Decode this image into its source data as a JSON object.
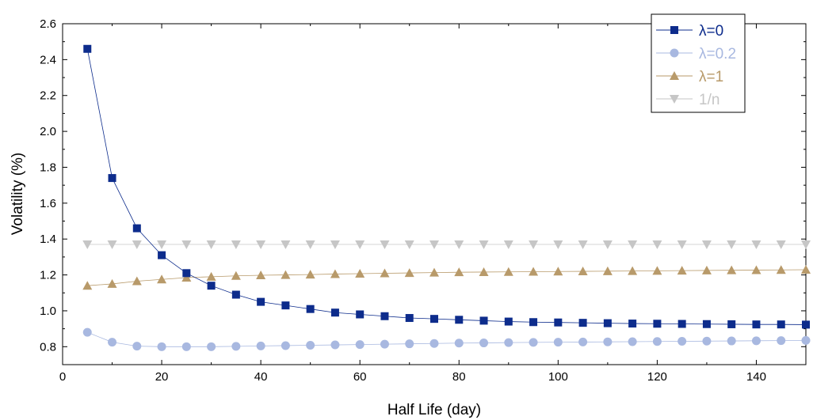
{
  "chart_data": {
    "type": "line",
    "title": "",
    "xlabel": "Half Life (day)",
    "ylabel": "Volatility (%)",
    "xlim": [
      0,
      150
    ],
    "ylim": [
      0.7,
      2.6
    ],
    "xticks": [
      0,
      20,
      40,
      60,
      80,
      100,
      120,
      140
    ],
    "yticks": [
      0.8,
      1.0,
      1.2,
      1.4,
      1.6,
      1.8,
      2.0,
      2.2,
      2.4,
      2.6
    ],
    "xtick_labels": [
      "0",
      "20",
      "40",
      "60",
      "80",
      "100",
      "120",
      "140"
    ],
    "ytick_labels": [
      "0.8",
      "1.0",
      "1.2",
      "1.4",
      "1.6",
      "1.8",
      "2.0",
      "2.2",
      "2.4",
      "2.6"
    ],
    "grid": false,
    "legend_position": "top-right",
    "x": [
      5,
      10,
      15,
      20,
      25,
      30,
      35,
      40,
      45,
      50,
      55,
      60,
      65,
      70,
      75,
      80,
      85,
      90,
      95,
      100,
      105,
      110,
      115,
      120,
      125,
      130,
      135,
      140,
      145,
      150
    ],
    "series": [
      {
        "name": "λ=0",
        "color": "#0d2c8c",
        "marker": "square",
        "values": [
          2.46,
          1.74,
          1.46,
          1.31,
          1.21,
          1.14,
          1.09,
          1.05,
          1.03,
          1.01,
          0.99,
          0.98,
          0.97,
          0.96,
          0.955,
          0.95,
          0.945,
          0.94,
          0.937,
          0.935,
          0.933,
          0.931,
          0.929,
          0.928,
          0.927,
          0.926,
          0.925,
          0.924,
          0.924,
          0.923
        ]
      },
      {
        "name": "λ=0.2",
        "color": "#a8b8e0",
        "marker": "circle",
        "values": [
          0.88,
          0.825,
          0.803,
          0.8,
          0.8,
          0.8,
          0.802,
          0.804,
          0.806,
          0.808,
          0.81,
          0.812,
          0.814,
          0.816,
          0.818,
          0.82,
          0.821,
          0.823,
          0.824,
          0.825,
          0.826,
          0.827,
          0.828,
          0.829,
          0.83,
          0.831,
          0.832,
          0.833,
          0.834,
          0.835
        ]
      },
      {
        "name": "λ=1",
        "color": "#b89a6a",
        "marker": "triangle-up",
        "values": [
          1.14,
          1.15,
          1.165,
          1.175,
          1.185,
          1.19,
          1.195,
          1.198,
          1.2,
          1.202,
          1.205,
          1.207,
          1.209,
          1.211,
          1.213,
          1.215,
          1.216,
          1.217,
          1.218,
          1.219,
          1.22,
          1.221,
          1.222,
          1.223,
          1.224,
          1.225,
          1.226,
          1.227,
          1.228,
          1.229
        ]
      },
      {
        "name": "1/n",
        "color": "#c6c6c6",
        "marker": "triangle-down",
        "values": [
          1.37,
          1.37,
          1.37,
          1.37,
          1.37,
          1.37,
          1.37,
          1.37,
          1.37,
          1.37,
          1.37,
          1.37,
          1.37,
          1.37,
          1.37,
          1.37,
          1.37,
          1.37,
          1.37,
          1.37,
          1.37,
          1.37,
          1.37,
          1.37,
          1.37,
          1.37,
          1.37,
          1.37,
          1.37,
          1.37
        ]
      }
    ]
  }
}
